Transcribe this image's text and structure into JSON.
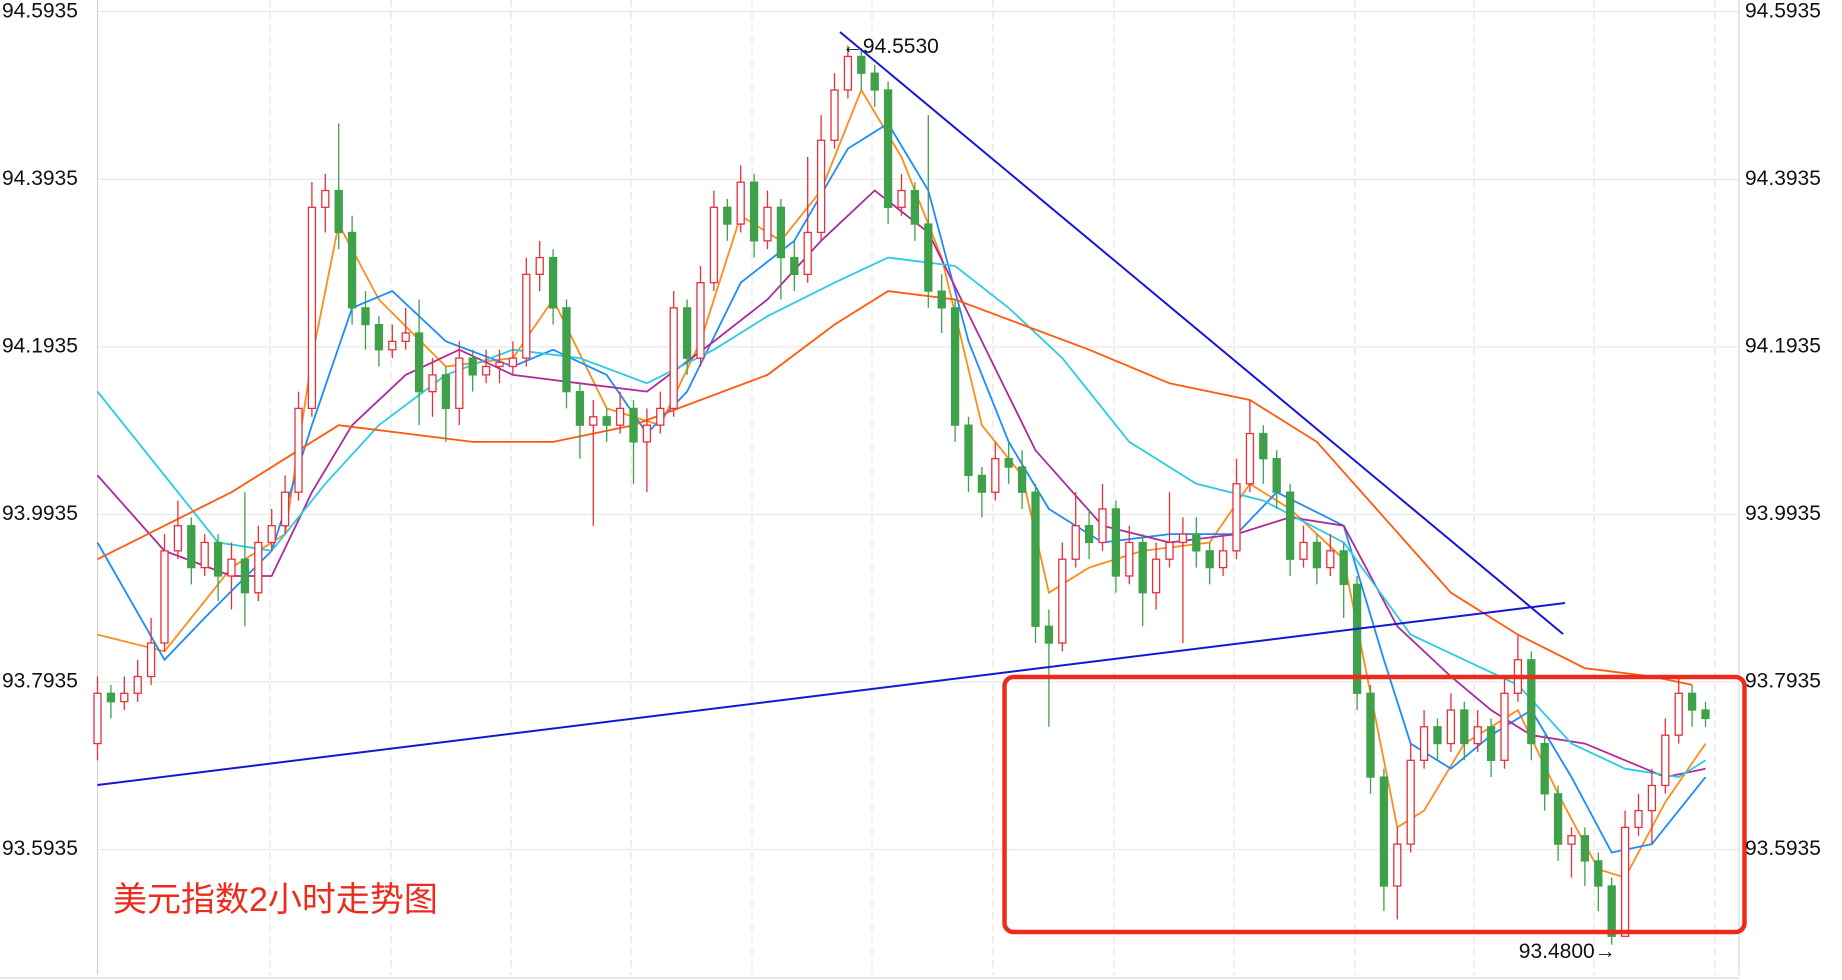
{
  "chart_data": {
    "type": "candlestick",
    "title": "美元指数2小时走势图",
    "ylim": [
      93.4438,
      94.6074
    ],
    "yticks": [
      93.5935,
      93.7935,
      93.9935,
      94.1935,
      94.3935,
      94.5935
    ],
    "grid": true,
    "up_color": "#e8303a",
    "down_color": "#3fa14a",
    "open": [
      93.72,
      93.78,
      93.77,
      93.78,
      93.8,
      93.84,
      93.95,
      93.98,
      93.93,
      93.96,
      93.92,
      93.94,
      93.9,
      93.96,
      93.98,
      94.02,
      94.12,
      94.36,
      94.38,
      94.33,
      94.24,
      94.22,
      94.19,
      94.2,
      94.21,
      94.14,
      94.16,
      94.12,
      94.18,
      94.16,
      94.17,
      94.17,
      94.18,
      94.28,
      94.3,
      94.24,
      94.14,
      94.1,
      94.11,
      94.1,
      94.12,
      94.08,
      94.1,
      94.12,
      94.24,
      94.18,
      94.27,
      94.36,
      94.34,
      94.39,
      94.32,
      94.36,
      94.3,
      94.28,
      94.33,
      94.44,
      94.5,
      94.54,
      94.52,
      94.5,
      94.36,
      94.38,
      94.34,
      94.26,
      94.24,
      94.1,
      94.04,
      94.02,
      94.06,
      94.05,
      94.02,
      93.86,
      93.84,
      93.94,
      93.98,
      93.96,
      94.0,
      93.92,
      93.96,
      93.9,
      93.94,
      93.96,
      93.97,
      93.95,
      93.93,
      93.95,
      94.03,
      94.09,
      94.06,
      94.02,
      93.94,
      93.96,
      93.93,
      93.95,
      93.91,
      93.78,
      93.68,
      93.55,
      93.6,
      93.7,
      93.74,
      93.72,
      93.76,
      93.72,
      93.74,
      93.7,
      93.78,
      93.82,
      93.72,
      93.66,
      93.6,
      93.61,
      93.58,
      93.55,
      93.49,
      93.62,
      93.64,
      93.67,
      93.73,
      93.78,
      93.76
    ],
    "high": [
      93.8,
      93.79,
      93.8,
      93.82,
      93.87,
      93.97,
      94.01,
      93.99,
      93.97,
      93.97,
      93.96,
      94.02,
      93.98,
      94.0,
      94.04,
      94.14,
      94.39,
      94.4,
      94.46,
      94.35,
      94.26,
      94.23,
      94.22,
      94.24,
      94.25,
      94.18,
      94.17,
      94.2,
      94.19,
      94.19,
      94.19,
      94.2,
      94.3,
      94.32,
      94.31,
      94.25,
      94.15,
      94.13,
      94.12,
      94.14,
      94.13,
      94.12,
      94.14,
      94.26,
      94.25,
      94.29,
      94.38,
      94.37,
      94.41,
      94.4,
      94.38,
      94.37,
      94.32,
      94.42,
      94.47,
      94.52,
      94.553,
      94.55,
      94.53,
      94.51,
      94.4,
      94.39,
      94.47,
      94.28,
      94.25,
      94.11,
      94.05,
      94.08,
      94.08,
      94.07,
      94.03,
      93.88,
      93.96,
      94.02,
      94.0,
      94.03,
      94.01,
      93.98,
      93.97,
      93.96,
      94.02,
      93.99,
      93.99,
      93.96,
      93.97,
      94.06,
      94.13,
      94.1,
      94.07,
      94.03,
      93.98,
      93.97,
      93.97,
      93.96,
      93.92,
      93.79,
      93.69,
      93.62,
      93.72,
      93.76,
      93.75,
      93.78,
      93.77,
      93.76,
      93.75,
      93.8,
      93.85,
      93.83,
      93.73,
      93.67,
      93.62,
      93.62,
      93.59,
      93.56,
      93.64,
      93.66,
      93.69,
      93.75,
      93.8,
      93.79,
      93.77
    ],
    "low": [
      93.7,
      93.75,
      93.76,
      93.77,
      93.79,
      93.83,
      93.94,
      93.91,
      93.92,
      93.89,
      93.88,
      93.86,
      93.89,
      93.95,
      93.97,
      94.01,
      94.11,
      94.33,
      94.31,
      94.22,
      94.19,
      94.17,
      94.18,
      94.19,
      94.1,
      94.11,
      94.08,
      94.1,
      94.14,
      94.15,
      94.15,
      94.16,
      94.17,
      94.26,
      94.22,
      94.12,
      94.06,
      93.98,
      94.08,
      94.09,
      94.03,
      94.02,
      94.09,
      94.11,
      94.16,
      94.17,
      94.26,
      94.32,
      94.33,
      94.3,
      94.31,
      94.25,
      94.26,
      94.27,
      94.32,
      94.43,
      94.49,
      94.5,
      94.48,
      94.34,
      94.35,
      94.32,
      94.24,
      94.21,
      94.08,
      94.02,
      93.99,
      94.01,
      94.03,
      94.0,
      93.84,
      93.74,
      93.83,
      93.93,
      93.94,
      93.95,
      93.9,
      93.91,
      93.86,
      93.88,
      93.93,
      93.84,
      93.93,
      93.91,
      93.92,
      93.94,
      94.02,
      94.03,
      94.0,
      93.92,
      93.93,
      93.91,
      93.92,
      93.87,
      93.76,
      93.66,
      93.52,
      93.51,
      93.59,
      93.69,
      93.7,
      93.71,
      93.7,
      93.71,
      93.68,
      93.69,
      93.77,
      93.7,
      93.64,
      93.58,
      93.56,
      93.55,
      93.52,
      93.48,
      93.49,
      93.61,
      93.6,
      93.66,
      93.72,
      93.74,
      93.74
    ],
    "close": [
      93.78,
      93.77,
      93.78,
      93.8,
      93.84,
      93.95,
      93.98,
      93.93,
      93.96,
      93.92,
      93.94,
      93.9,
      93.96,
      93.98,
      94.02,
      94.12,
      94.36,
      94.38,
      94.33,
      94.24,
      94.22,
      94.19,
      94.2,
      94.21,
      94.14,
      94.16,
      94.12,
      94.18,
      94.16,
      94.17,
      94.175,
      94.18,
      94.28,
      94.3,
      94.24,
      94.14,
      94.1,
      94.11,
      94.1,
      94.12,
      94.08,
      94.1,
      94.12,
      94.24,
      94.18,
      94.27,
      94.36,
      94.34,
      94.39,
      94.32,
      94.36,
      94.3,
      94.28,
      94.33,
      94.44,
      94.5,
      94.54,
      94.52,
      94.5,
      94.36,
      94.38,
      94.34,
      94.26,
      94.24,
      94.1,
      94.04,
      94.02,
      94.06,
      94.05,
      94.02,
      93.86,
      93.84,
      93.94,
      93.98,
      93.96,
      94.0,
      93.92,
      93.96,
      93.9,
      93.94,
      93.96,
      93.97,
      93.95,
      93.93,
      93.95,
      94.03,
      94.09,
      94.06,
      94.02,
      93.94,
      93.96,
      93.93,
      93.95,
      93.91,
      93.78,
      93.68,
      93.55,
      93.6,
      93.7,
      93.74,
      93.72,
      93.76,
      93.72,
      93.74,
      93.7,
      93.78,
      93.82,
      93.72,
      93.66,
      93.6,
      93.61,
      93.58,
      93.55,
      93.49,
      93.62,
      93.64,
      93.67,
      93.73,
      93.78,
      93.76,
      93.75
    ],
    "moving_averages": [
      {
        "color": "#ff8c1a",
        "x": [
          0,
          5,
          10,
          14,
          16,
          18,
          21,
          26,
          31,
          34,
          38,
          42,
          45,
          48,
          51,
          54,
          57,
          60,
          63,
          66,
          69,
          71,
          74,
          78,
          83,
          86,
          89,
          93,
          96,
          97,
          99,
          102,
          106,
          109,
          112,
          114,
          117,
          120
        ],
        "values": [
          93.85,
          93.83,
          93.93,
          93.97,
          94.18,
          94.34,
          94.25,
          94.17,
          94.18,
          94.25,
          94.12,
          94.1,
          94.2,
          94.35,
          94.32,
          94.38,
          94.5,
          94.42,
          94.3,
          94.1,
          94.04,
          93.9,
          93.93,
          93.95,
          93.96,
          94.03,
          94.0,
          93.94,
          93.7,
          93.62,
          93.64,
          93.72,
          93.76,
          93.66,
          93.57,
          93.56,
          93.65,
          93.72
        ]
      },
      {
        "color": "#1a8cff",
        "x": [
          0,
          5,
          8,
          13,
          16,
          19,
          22,
          26,
          31,
          34,
          38,
          41,
          44,
          48,
          52,
          56,
          59,
          62,
          65,
          68,
          71,
          75,
          80,
          85,
          88,
          93,
          96,
          98,
          101,
          104,
          107,
          110,
          113,
          116,
          120
        ],
        "values": [
          93.96,
          93.82,
          93.87,
          93.95,
          94.1,
          94.24,
          94.26,
          94.2,
          94.17,
          94.19,
          94.16,
          94.09,
          94.14,
          94.27,
          94.32,
          94.43,
          94.46,
          94.38,
          94.2,
          94.08,
          94.0,
          93.96,
          93.97,
          93.97,
          94.02,
          93.98,
          93.82,
          93.72,
          93.69,
          93.73,
          93.76,
          93.68,
          93.59,
          93.6,
          93.68
        ]
      },
      {
        "color": "#b0289a",
        "x": [
          0,
          5,
          10,
          13,
          16,
          19,
          23,
          27,
          31,
          36,
          41,
          46,
          50,
          54,
          58,
          62,
          66,
          70,
          75,
          80,
          85,
          89,
          93,
          97,
          101,
          104,
          107,
          111,
          114,
          117,
          120
        ],
        "values": [
          94.04,
          93.95,
          93.92,
          93.92,
          94.02,
          94.1,
          94.16,
          94.19,
          94.16,
          94.15,
          94.14,
          94.2,
          94.25,
          94.32,
          94.38,
          94.33,
          94.2,
          94.07,
          93.98,
          93.96,
          93.97,
          93.99,
          93.98,
          93.86,
          93.8,
          93.76,
          93.73,
          93.72,
          93.7,
          93.68,
          93.69
        ]
      },
      {
        "color": "#2ccbe0",
        "x": [
          0,
          5,
          9,
          13,
          17,
          21,
          26,
          31,
          36,
          41,
          46,
          50,
          55,
          59,
          64,
          68,
          72,
          77,
          82,
          87,
          93,
          98,
          102,
          106,
          110,
          114,
          118,
          120
        ],
        "values": [
          94.14,
          94.04,
          93.96,
          93.95,
          94.03,
          94.1,
          94.16,
          94.19,
          94.18,
          94.15,
          94.19,
          94.23,
          94.27,
          94.3,
          94.29,
          94.24,
          94.18,
          94.08,
          94.03,
          94.01,
          93.96,
          93.85,
          93.82,
          93.79,
          93.72,
          93.69,
          93.68,
          93.7
        ]
      },
      {
        "color": "#ff5a0a",
        "x": [
          0,
          5,
          10,
          14,
          18,
          23,
          28,
          34,
          40,
          45,
          50,
          55,
          59,
          64,
          69,
          74,
          80,
          86,
          91,
          96,
          101,
          106,
          111,
          116,
          119
        ],
        "values": [
          93.94,
          93.98,
          94.02,
          94.06,
          94.1,
          94.09,
          94.08,
          94.08,
          94.1,
          94.13,
          94.16,
          94.22,
          94.26,
          94.25,
          94.22,
          94.19,
          94.15,
          94.13,
          94.08,
          93.99,
          93.9,
          93.85,
          93.81,
          93.8,
          93.79
        ]
      }
    ],
    "annotations": [
      {
        "label": "←94.5530",
        "value": 94.553,
        "index": 56
      },
      {
        "label": "93.4800→",
        "value": 93.48,
        "index": 113
      }
    ]
  }
}
